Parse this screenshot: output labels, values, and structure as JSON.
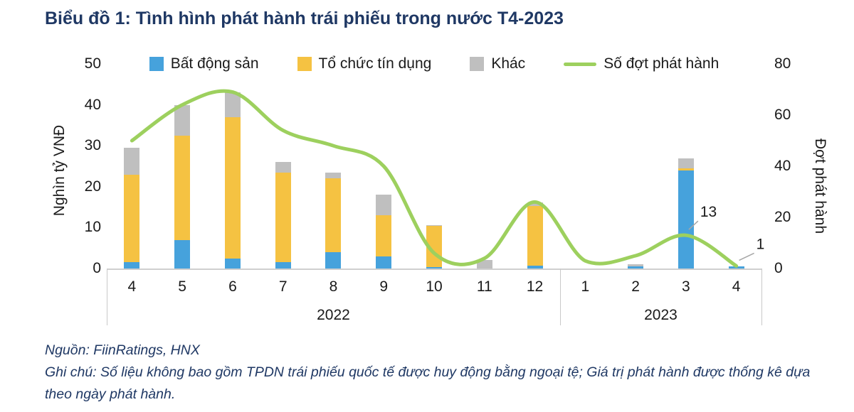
{
  "title": "Biểu đồ 1: Tình hình phát hành trái phiếu trong nước T4-2023",
  "chart_data": {
    "type": "bar+line",
    "categories": [
      "4",
      "5",
      "6",
      "7",
      "8",
      "9",
      "10",
      "11",
      "12",
      "1",
      "2",
      "3",
      "4"
    ],
    "year_groups": [
      {
        "label": "2022",
        "from": 0,
        "to": 8
      },
      {
        "label": "2023",
        "from": 9,
        "to": 12
      }
    ],
    "series": [
      {
        "name": "Bất động sản",
        "type": "bar",
        "color": "#46A2DC",
        "values": [
          1.5,
          7,
          2.5,
          1.5,
          4,
          3,
          0.4,
          0,
          0.7,
          0,
          0.6,
          24,
          0.5
        ]
      },
      {
        "name": "Tổ chức tín dụng",
        "type": "bar",
        "color": "#F5C242",
        "values": [
          21.5,
          25.5,
          34.5,
          22,
          18,
          10,
          10,
          0,
          14.5,
          0,
          0,
          0.4,
          0
        ]
      },
      {
        "name": "Khác",
        "type": "bar",
        "color": "#BFBFBF",
        "values": [
          6.5,
          7.5,
          6,
          2.5,
          1.5,
          5,
          0.2,
          2,
          1,
          0,
          0.4,
          2.6,
          0
        ]
      },
      {
        "name": "Số đợt phát hành",
        "type": "line",
        "color": "#9DD05E",
        "axis": "right",
        "values": [
          50,
          64,
          69,
          54,
          48,
          40,
          6,
          4,
          26,
          3,
          5,
          13,
          1
        ]
      }
    ],
    "left_axis": {
      "label": "Nghìn tỷ VNĐ",
      "min": 0,
      "max": 50,
      "ticks": [
        0,
        10,
        20,
        30,
        40,
        50
      ]
    },
    "right_axis": {
      "label": "Đợt phát hành",
      "min": 0,
      "max": 80,
      "ticks": [
        0,
        20,
        40,
        60,
        80
      ]
    },
    "annotations": [
      {
        "text": "13",
        "point_index": 11
      },
      {
        "text": "1",
        "point_index": 12
      }
    ],
    "legend_position": "top",
    "grid": false
  },
  "footer": {
    "source": "Nguồn: FiinRatings, HNX",
    "note": "Ghi chú: Số liệu không bao gồm TPDN trái phiếu quốc tế được huy động bằng ngoại tệ; Giá trị phát hành được thống kê dựa theo ngày phát hành."
  }
}
